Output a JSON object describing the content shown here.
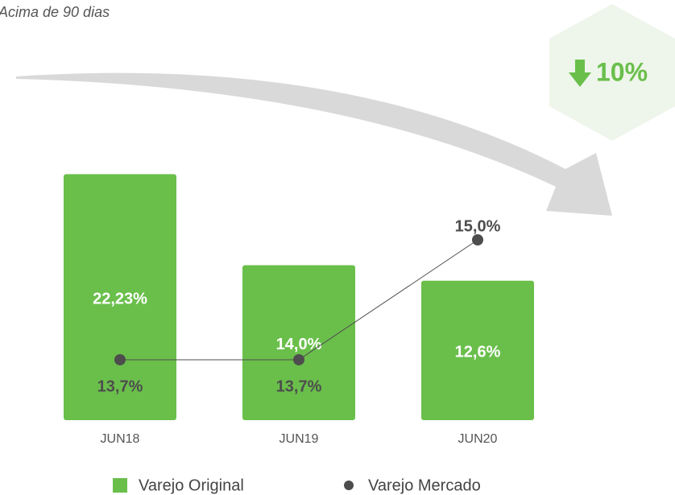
{
  "chart_data": {
    "type": "bar-line",
    "subtitle": "Acima de 90 dias",
    "annotation": "10%",
    "categories": [
      "JUN18",
      "JUN19",
      "JUN20"
    ],
    "series": [
      {
        "name": "Varejo Original",
        "type": "bar",
        "color": "#6abf4b",
        "values": [
          22.23,
          14.0,
          12.6
        ],
        "value_labels": [
          "22,23%",
          "14,0%",
          "12,6%"
        ]
      },
      {
        "name": "Varejo Mercado",
        "type": "line",
        "color": "#4d4d4d",
        "values": [
          13.7,
          13.7,
          15.0
        ],
        "value_labels": [
          "13,7%",
          "13,7%",
          "15,0%"
        ]
      }
    ]
  }
}
